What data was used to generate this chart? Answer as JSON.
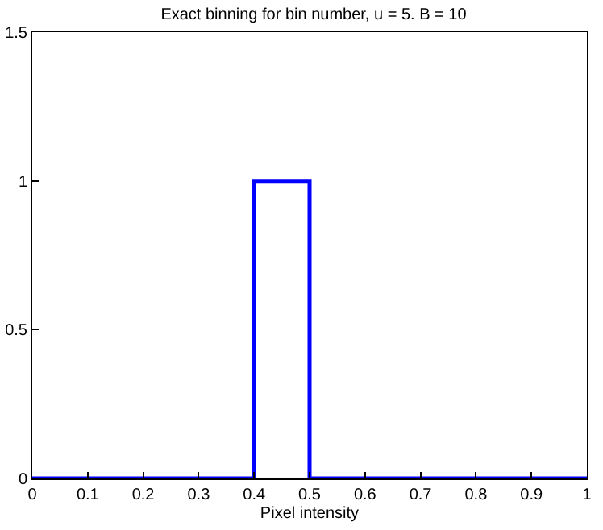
{
  "chart_data": {
    "type": "line",
    "title": "Exact binning for bin number, u = 5. B = 10",
    "xlabel": "Pixel intensity",
    "x": [
      0,
      0.4,
      0.4,
      0.5,
      0.5,
      1
    ],
    "series": [
      {
        "color": "#0000ff",
        "values": [
          0,
          0,
          1,
          1,
          0,
          0
        ]
      }
    ],
    "xlim": [
      0,
      1
    ],
    "ylim": [
      0,
      1.5
    ],
    "xticks": [
      0,
      0.1,
      0.2,
      0.3,
      0.4,
      0.5,
      0.6,
      0.7,
      0.8,
      0.9,
      1
    ],
    "yticks": [
      0,
      0.5,
      1,
      1.5
    ],
    "grid": false,
    "marker": "none",
    "line_style": "solid"
  }
}
